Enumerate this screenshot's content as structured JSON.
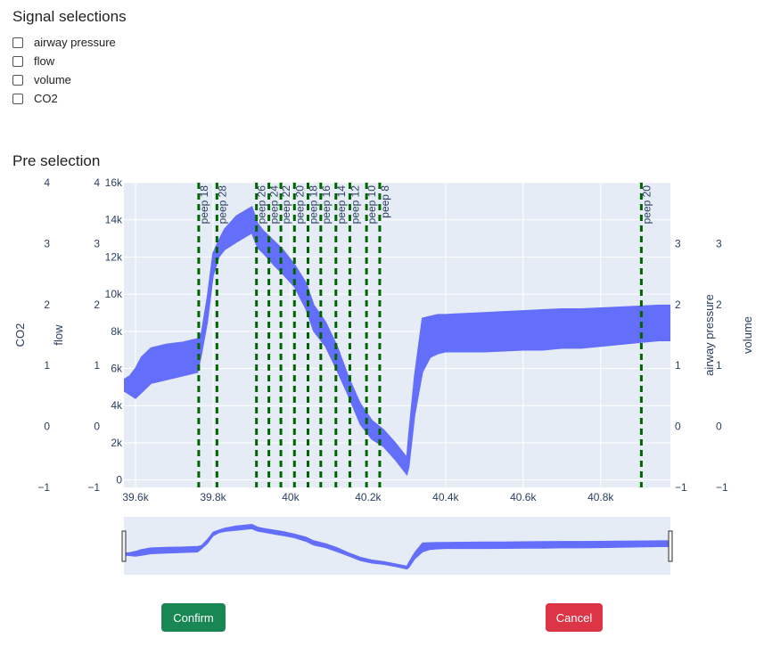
{
  "signal_selections": {
    "title": "Signal selections",
    "options": [
      {
        "label": "airway pressure",
        "checked": false
      },
      {
        "label": "flow",
        "checked": false
      },
      {
        "label": "volume",
        "checked": false
      },
      {
        "label": "CO2",
        "checked": false
      }
    ]
  },
  "pre_selection": {
    "title": "Pre selection"
  },
  "chart_data": {
    "type": "line",
    "series_color": "#636efa",
    "marker_color": "#006400",
    "plot_bg": "#e5ecf6",
    "x_range": [
      39570,
      40980
    ],
    "x_ticks": [
      39600,
      39800,
      40000,
      40200,
      40400,
      40600,
      40800
    ],
    "x_tick_labels": [
      "39.6k",
      "39.8k",
      "40k",
      "40.2k",
      "40.4k",
      "40.6k",
      "40.8k"
    ],
    "flow_axis": {
      "label": "flow",
      "ticks": [
        0,
        2000,
        4000,
        6000,
        8000,
        10000,
        12000,
        14000,
        16000
      ],
      "tick_labels": [
        "0",
        "2k",
        "4k",
        "6k",
        "8k",
        "10k",
        "12k",
        "14k",
        "16k"
      ],
      "range": [
        -400,
        16000
      ]
    },
    "co2_axis": {
      "label": "CO2",
      "ticks": [
        -1,
        0,
        1,
        2,
        3,
        4
      ],
      "tick_labels": [
        "−1",
        "0",
        "1",
        "2",
        "3",
        "4"
      ]
    },
    "flow_side_ticks": [
      "−1",
      "0",
      "1",
      "2",
      "3",
      "4"
    ],
    "airway_pressure_axis": {
      "label": "airway pressure",
      "tick_labels": [
        "−1",
        "0",
        "1",
        "2",
        "3"
      ]
    },
    "volume_axis": {
      "label": "volume",
      "tick_labels": [
        "−1",
        "0",
        "1",
        "2",
        "3"
      ]
    },
    "peep_markers": [
      {
        "x": 39763,
        "label": "peep 18"
      },
      {
        "x": 39810,
        "label": "peep 28"
      },
      {
        "x": 39912,
        "label": "peep 26"
      },
      {
        "x": 39944,
        "label": "peep 24"
      },
      {
        "x": 39975,
        "label": "peep 22"
      },
      {
        "x": 40010,
        "label": "peep 20"
      },
      {
        "x": 40045,
        "label": "peep 18"
      },
      {
        "x": 40078,
        "label": "peep 16"
      },
      {
        "x": 40117,
        "label": "peep 14"
      },
      {
        "x": 40153,
        "label": "peep 12"
      },
      {
        "x": 40196,
        "label": "peep 10"
      },
      {
        "x": 40230,
        "label": "peep 8"
      },
      {
        "x": 40905,
        "label": "peep 20"
      }
    ],
    "signal": {
      "x": [
        39570,
        39585,
        39600,
        39615,
        39640,
        39680,
        39720,
        39760,
        39770,
        39785,
        39800,
        39815,
        39830,
        39860,
        39900,
        39915,
        39930,
        39960,
        39980,
        40010,
        40040,
        40060,
        40090,
        40120,
        40150,
        40180,
        40210,
        40240,
        40270,
        40300,
        40305,
        40320,
        40340,
        40360,
        40380,
        40400,
        40450,
        40500,
        40550,
        40600,
        40650,
        40700,
        40750,
        40800,
        40850,
        40900,
        40950,
        40980
      ],
      "low": [
        4800,
        4600,
        4400,
        4700,
        5200,
        5400,
        5600,
        5800,
        6800,
        8500,
        11000,
        12000,
        12400,
        12800,
        13300,
        12500,
        12200,
        11500,
        11100,
        10400,
        9200,
        8000,
        7200,
        5900,
        4500,
        3000,
        2200,
        1800,
        1100,
        300,
        700,
        3500,
        5800,
        6600,
        6800,
        6900,
        6900,
        6900,
        6950,
        7000,
        7000,
        7100,
        7100,
        7200,
        7300,
        7400,
        7500,
        7500
      ],
      "high": [
        5400,
        5600,
        6000,
        6600,
        7100,
        7300,
        7400,
        7600,
        7900,
        9800,
        12200,
        12900,
        13500,
        14200,
        14700,
        13800,
        13400,
        12800,
        12400,
        11600,
        10600,
        9400,
        8500,
        7200,
        5500,
        4100,
        3200,
        2700,
        2000,
        1200,
        2400,
        5600,
        8700,
        8800,
        8900,
        8900,
        8950,
        9000,
        9050,
        9100,
        9150,
        9200,
        9200,
        9250,
        9300,
        9350,
        9400,
        9400
      ]
    }
  },
  "navigator": {
    "label": "range-slider"
  },
  "buttons": {
    "confirm": "Confirm",
    "cancel": "Cancel"
  }
}
